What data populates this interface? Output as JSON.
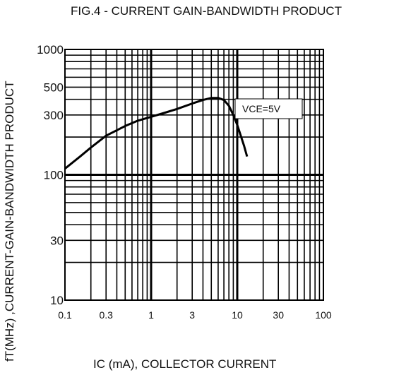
{
  "chart_data": {
    "type": "line",
    "title": "FIG.4 - CURRENT GAIN-BANDWIDTH PRODUCT",
    "xlabel": "IC (mA), COLLECTOR CURRENT",
    "ylabel": "fT(MHz) ,CURRENT-GAIN-BANDWIDTH PRODUCT",
    "xscale": "log",
    "yscale": "log",
    "xlim": [
      0.1,
      100
    ],
    "ylim": [
      10,
      1000
    ],
    "grid": true,
    "xticks": [
      "0.1",
      "0.3",
      "1",
      "3",
      "10",
      "30",
      "100"
    ],
    "xtick_values": [
      0.1,
      0.3,
      1,
      3,
      10,
      30,
      100
    ],
    "yticks": [
      "10",
      "30",
      "100",
      "300",
      "500",
      "1000"
    ],
    "ytick_values": [
      10,
      30,
      100,
      300,
      500,
      1000
    ],
    "annotation": "VCE=5V",
    "series": [
      {
        "x": [
          0.1,
          0.15,
          0.2,
          0.3,
          0.5,
          0.7,
          1,
          1.5,
          2,
          3,
          4,
          5,
          6,
          7,
          8,
          9,
          10,
          11,
          12,
          13
        ],
        "y": [
          112,
          140,
          165,
          205,
          245,
          270,
          290,
          315,
          335,
          370,
          395,
          410,
          410,
          395,
          355,
          300,
          250,
          205,
          170,
          140
        ]
      }
    ]
  }
}
